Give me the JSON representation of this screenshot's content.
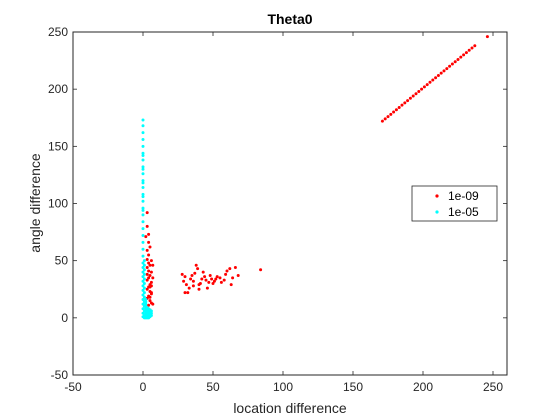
{
  "chart_data": {
    "type": "scatter",
    "title": "Theta0",
    "xlabel": "location difference",
    "ylabel": "angle difference",
    "xlim": [
      -50,
      260
    ],
    "ylim": [
      -50,
      250
    ],
    "xticks": [
      -50,
      0,
      50,
      100,
      150,
      200,
      250
    ],
    "yticks": [
      -50,
      0,
      50,
      100,
      150,
      200,
      250
    ],
    "grid": false,
    "legend_position": "right",
    "series": [
      {
        "name": "1e-09",
        "color": "#ff0000",
        "points": [
          [
            171,
            172
          ],
          [
            173,
            174
          ],
          [
            175,
            176
          ],
          [
            177,
            178
          ],
          [
            179,
            180
          ],
          [
            181,
            182
          ],
          [
            183,
            184
          ],
          [
            185,
            186
          ],
          [
            187,
            188
          ],
          [
            189,
            190
          ],
          [
            191,
            192
          ],
          [
            193,
            194
          ],
          [
            195,
            196
          ],
          [
            197,
            198
          ],
          [
            199,
            200
          ],
          [
            201,
            202
          ],
          [
            203,
            204
          ],
          [
            205,
            206
          ],
          [
            207,
            208
          ],
          [
            209,
            210
          ],
          [
            211,
            212
          ],
          [
            213,
            214
          ],
          [
            215,
            216
          ],
          [
            217,
            218
          ],
          [
            219,
            220
          ],
          [
            221,
            222
          ],
          [
            223,
            224
          ],
          [
            225,
            226
          ],
          [
            227,
            228
          ],
          [
            229,
            230
          ],
          [
            231,
            232
          ],
          [
            233,
            234
          ],
          [
            235,
            236
          ],
          [
            237,
            238
          ],
          [
            246,
            246
          ],
          [
            84,
            42
          ],
          [
            68,
            37
          ],
          [
            66,
            44
          ],
          [
            64,
            35
          ],
          [
            63,
            29
          ],
          [
            62,
            43
          ],
          [
            60,
            41
          ],
          [
            59,
            38
          ],
          [
            58,
            33
          ],
          [
            56,
            31
          ],
          [
            55,
            35
          ],
          [
            53,
            36
          ],
          [
            52,
            34
          ],
          [
            51,
            32
          ],
          [
            50,
            30
          ],
          [
            49,
            34
          ],
          [
            48,
            37
          ],
          [
            47,
            31
          ],
          [
            46,
            26
          ],
          [
            45,
            33
          ],
          [
            44,
            36
          ],
          [
            43,
            40
          ],
          [
            42,
            34
          ],
          [
            41,
            30
          ],
          [
            40,
            25
          ],
          [
            39,
            43
          ],
          [
            38,
            46
          ],
          [
            37,
            39
          ],
          [
            36,
            32
          ],
          [
            35,
            37
          ],
          [
            34,
            34
          ],
          [
            33,
            26
          ],
          [
            32,
            22
          ],
          [
            31,
            29
          ],
          [
            30,
            36
          ],
          [
            29,
            32
          ],
          [
            28,
            38
          ],
          [
            30,
            22
          ],
          [
            36,
            28
          ],
          [
            40,
            29
          ],
          [
            3,
            92
          ],
          [
            3,
            80
          ],
          [
            4,
            73
          ],
          [
            2,
            71
          ],
          [
            5,
            62
          ],
          [
            3,
            59
          ],
          [
            4,
            55
          ],
          [
            6,
            50
          ],
          [
            5,
            46
          ],
          [
            7,
            46
          ],
          [
            3,
            44
          ],
          [
            4,
            41
          ],
          [
            6,
            40
          ],
          [
            5,
            37
          ],
          [
            4,
            35
          ],
          [
            3,
            33
          ],
          [
            6,
            31
          ],
          [
            5,
            29
          ],
          [
            4,
            27
          ],
          [
            3,
            25
          ],
          [
            5,
            23
          ],
          [
            6,
            21
          ],
          [
            4,
            19
          ],
          [
            3,
            17
          ],
          [
            5,
            15
          ],
          [
            6,
            13
          ],
          [
            4,
            11
          ],
          [
            3,
            9
          ],
          [
            5,
            7
          ],
          [
            4,
            5
          ],
          [
            6,
            22
          ],
          [
            5,
            27
          ],
          [
            3,
            38
          ],
          [
            4,
            48
          ],
          [
            7,
            35
          ],
          [
            6,
            28
          ],
          [
            5,
            18
          ],
          [
            7,
            12
          ],
          [
            3,
            51
          ],
          [
            4,
            66
          ]
        ]
      },
      {
        "name": "1e-05",
        "color": "#00ffff",
        "points": [
          [
            0,
            173
          ],
          [
            0,
            168
          ],
          [
            0,
            162
          ],
          [
            0,
            156
          ],
          [
            0,
            150
          ],
          [
            0,
            144
          ],
          [
            0,
            138
          ],
          [
            0,
            132
          ],
          [
            0,
            126
          ],
          [
            0,
            120
          ],
          [
            0,
            114
          ],
          [
            0,
            108
          ],
          [
            0,
            102
          ],
          [
            0,
            96
          ],
          [
            0,
            90
          ],
          [
            0,
            84
          ],
          [
            0,
            78
          ],
          [
            0,
            72
          ],
          [
            0,
            66
          ],
          [
            0,
            60
          ],
          [
            0,
            54
          ],
          [
            1,
            50
          ],
          [
            1,
            46
          ],
          [
            1,
            42
          ],
          [
            1,
            38
          ],
          [
            1,
            34
          ],
          [
            1,
            30
          ],
          [
            1,
            26
          ],
          [
            1,
            22
          ],
          [
            1,
            18
          ],
          [
            2,
            16
          ],
          [
            2,
            14
          ],
          [
            2,
            12
          ],
          [
            2,
            10
          ],
          [
            2,
            8
          ],
          [
            2,
            6
          ],
          [
            2,
            4
          ],
          [
            2,
            2
          ],
          [
            2,
            0
          ],
          [
            3,
            1
          ],
          [
            3,
            3
          ],
          [
            3,
            5
          ],
          [
            3,
            7
          ],
          [
            3,
            9
          ],
          [
            4,
            2
          ],
          [
            4,
            4
          ],
          [
            4,
            6
          ],
          [
            4,
            8
          ],
          [
            5,
            3
          ],
          [
            5,
            5
          ],
          [
            5,
            7
          ],
          [
            6,
            2
          ],
          [
            6,
            4
          ],
          [
            6,
            6
          ],
          [
            1,
            2
          ],
          [
            1,
            6
          ],
          [
            1,
            10
          ],
          [
            1,
            14
          ],
          [
            0,
            4
          ],
          [
            0,
            8
          ],
          [
            0,
            12
          ],
          [
            0,
            16
          ],
          [
            0,
            20
          ],
          [
            0,
            24
          ],
          [
            0,
            28
          ],
          [
            0,
            32
          ],
          [
            0,
            36
          ],
          [
            0,
            40
          ],
          [
            0,
            44
          ],
          [
            0,
            48
          ],
          [
            0,
            1
          ],
          [
            1,
            0
          ],
          [
            3,
            0
          ],
          [
            4,
            0
          ],
          [
            5,
            1
          ],
          [
            0,
            142
          ],
          [
            0,
            130
          ],
          [
            0,
            118
          ],
          [
            0,
            106
          ],
          [
            0,
            94
          ]
        ]
      }
    ]
  }
}
